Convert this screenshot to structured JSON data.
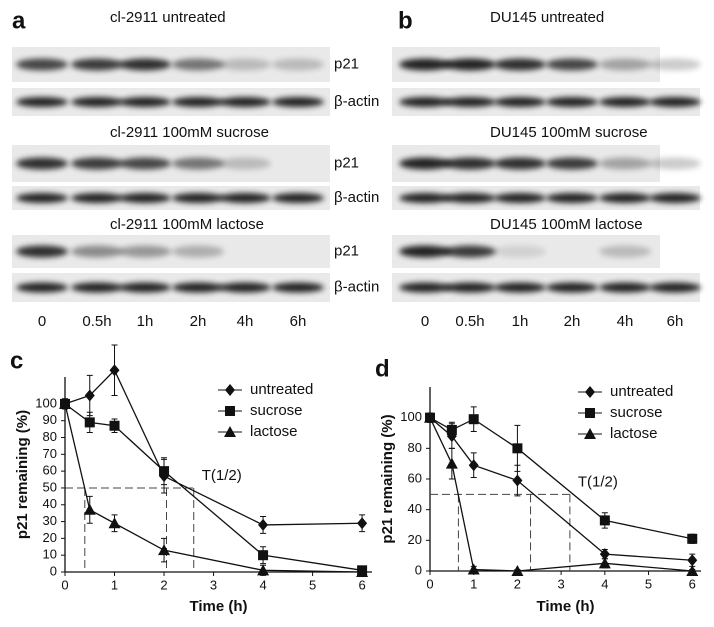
{
  "blots": [
    {
      "label": "a",
      "times": [
        "0",
        "0.5h",
        "1h",
        "2h",
        "4h",
        "6h"
      ],
      "groups": [
        {
          "title": "cl-2911  untreated",
          "rows": [
            "p21",
            "β-actin"
          ]
        },
        {
          "title": "cl-2911  100mM sucrose",
          "rows": [
            "p21",
            "β-actin"
          ]
        },
        {
          "title": "cl-2911  100mM lactose",
          "rows": [
            "p21",
            "β-actin"
          ]
        }
      ]
    },
    {
      "label": "b",
      "times": [
        "0",
        "0.5h",
        "1h",
        "2h",
        "4h",
        "6h"
      ],
      "groups": [
        {
          "title": "DU145  untreated"
        },
        {
          "title": "DU145  100mM sucrose"
        },
        {
          "title": "DU145  100mM lactose"
        }
      ]
    }
  ],
  "chart_data": [
    {
      "type": "line",
      "panel": "c",
      "ylabel": "p21 remaining (%)",
      "xlabel": "Time (h)",
      "xlim": [
        0,
        6.2
      ],
      "xticks": [
        0,
        1,
        2,
        3,
        4,
        5,
        6
      ],
      "ylim": [
        0,
        116
      ],
      "yticks": [
        0,
        10,
        20,
        30,
        40,
        50,
        60,
        70,
        80,
        90,
        100
      ],
      "legend": "upper right",
      "x": [
        0,
        0.5,
        1,
        2,
        4,
        6
      ],
      "series": [
        {
          "name": "untreated",
          "color": "#111111",
          "marker": "diamond",
          "values": [
            100,
            105,
            120,
            57,
            28,
            29
          ],
          "errors": [
            3,
            12,
            15,
            10,
            5,
            5
          ]
        },
        {
          "name": "sucrose",
          "color": "#111111",
          "marker": "square",
          "values": [
            100,
            89,
            87,
            60,
            10,
            1
          ],
          "errors": [
            3,
            6,
            4,
            8,
            5,
            2
          ]
        },
        {
          "name": "lactose",
          "color": "#111111",
          "marker": "triangle",
          "values": [
            100,
            37,
            29,
            13,
            1,
            0
          ],
          "errors": [
            3,
            8,
            5,
            7,
            3,
            0
          ]
        }
      ],
      "half_life": {
        "label": "T(1/2)",
        "y": 50,
        "x": [
          0.4,
          2.05,
          2.6
        ]
      }
    },
    {
      "type": "line",
      "panel": "d",
      "ylabel": "p21 remaining (%)",
      "xlabel": "Time (h)",
      "xlim": [
        0,
        6.2
      ],
      "xticks": [
        0,
        1,
        2,
        3,
        4,
        5,
        6
      ],
      "ylim": [
        0,
        120
      ],
      "yticks": [
        0,
        20,
        40,
        60,
        80,
        100
      ],
      "legend": "upper right",
      "x": [
        0,
        0.5,
        1,
        2,
        4,
        6
      ],
      "series": [
        {
          "name": "untreated",
          "color": "#111111",
          "marker": "diamond",
          "values": [
            100,
            88,
            69,
            59,
            11,
            7
          ],
          "errors": [
            3,
            8,
            8,
            10,
            3,
            4
          ]
        },
        {
          "name": "sucrose",
          "color": "#111111",
          "marker": "square",
          "values": [
            100,
            92,
            99,
            80,
            33,
            21
          ],
          "errors": [
            3,
            5,
            8,
            15,
            5,
            3
          ]
        },
        {
          "name": "lactose",
          "color": "#111111",
          "marker": "triangle",
          "values": [
            100,
            70,
            1,
            0,
            5,
            0
          ],
          "errors": [
            3,
            10,
            2,
            1,
            3,
            1
          ]
        }
      ],
      "half_life": {
        "label": "T(1/2)",
        "y": 50,
        "x": [
          0.65,
          2.3,
          3.2
        ]
      }
    }
  ]
}
